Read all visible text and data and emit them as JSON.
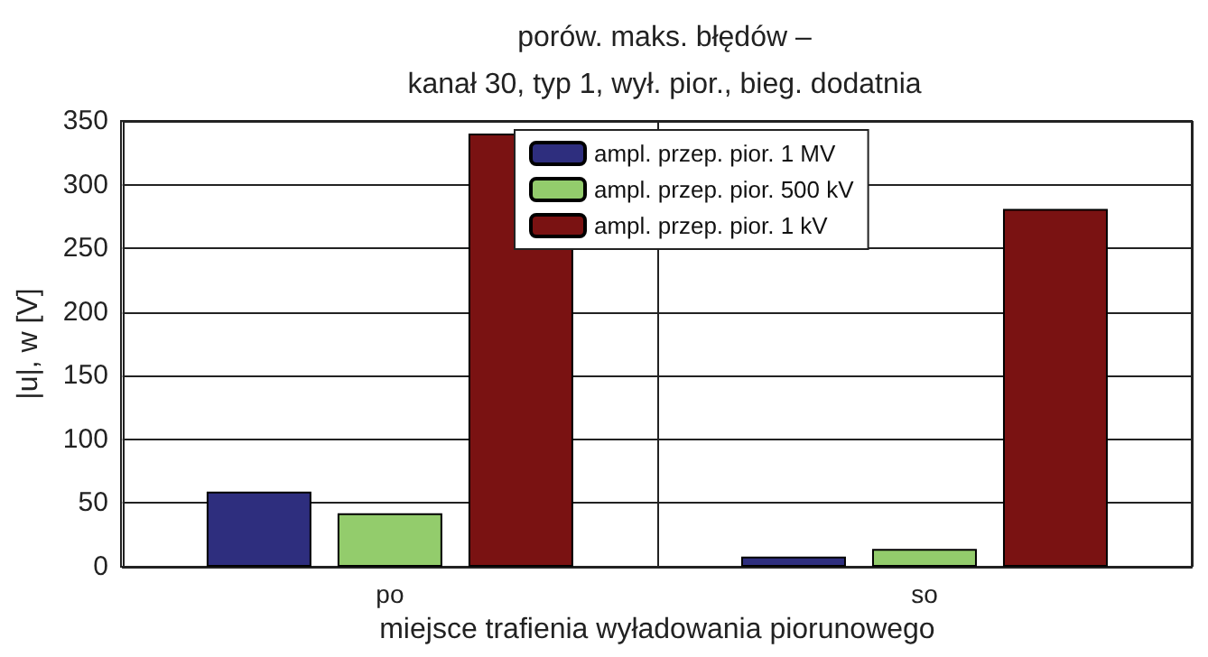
{
  "chart_data": {
    "type": "bar",
    "title": "porów. maks. błędów –",
    "subtitle": "kanał 30, typ 1, wył. pior., bieg. dodatnia",
    "xlabel": "miejsce trafienia wyładowania piorunowego",
    "ylabel": "|u|, w [V]",
    "categories": [
      "po",
      "so"
    ],
    "series": [
      {
        "name": "ampl. przep. pior. 1 MV",
        "color": "#2e2e7e",
        "values": [
          59,
          8
        ]
      },
      {
        "name": "ampl. przep. pior. 500 kV",
        "color": "#93cc6c",
        "values": [
          42,
          14
        ]
      },
      {
        "name": "ampl. przep. pior. 1 kV",
        "color": "#7a1212",
        "values": [
          340,
          281
        ]
      }
    ],
    "ylim": [
      0,
      350
    ],
    "yticks": [
      0,
      50,
      100,
      150,
      200,
      250,
      300,
      350
    ],
    "grid": true,
    "legend": "top"
  }
}
